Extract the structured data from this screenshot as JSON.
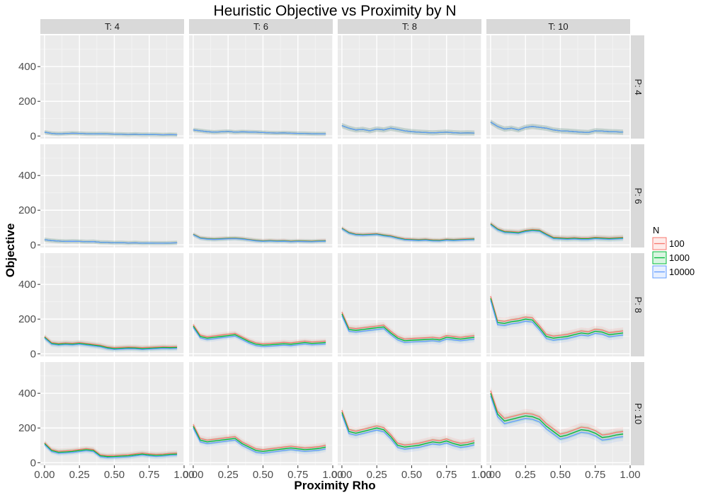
{
  "chart_data": {
    "type": "line",
    "title": "Heuristic Objective vs Proximity by N",
    "xlabel": "Proximity Rho",
    "ylabel": "Objective",
    "xlim": [
      -0.03,
      1.0
    ],
    "ylim": [
      -15,
      580
    ],
    "x_ticks": [
      0.0,
      0.25,
      0.5,
      0.75,
      1.0
    ],
    "x_tick_labels": [
      "0.00",
      "0.25",
      "0.50",
      "0.75",
      "1.00"
    ],
    "y_ticks": [
      0,
      200,
      400
    ],
    "y_tick_labels": [
      "0",
      "200",
      "400"
    ],
    "grid": true,
    "legend": {
      "title": "N",
      "position": "right",
      "entries": [
        {
          "label": "100",
          "color": "#F8766D"
        },
        {
          "label": "1000",
          "color": "#00BA38"
        },
        {
          "label": "10000",
          "color": "#619CFF"
        }
      ]
    },
    "facet_cols": [
      {
        "label": "T: 4"
      },
      {
        "label": "T: 6"
      },
      {
        "label": "T: 8"
      },
      {
        "label": "T: 10"
      }
    ],
    "facet_rows": [
      {
        "label": "P: 4"
      },
      {
        "label": "P: 6"
      },
      {
        "label": "P: 8"
      },
      {
        "label": "P: 10"
      }
    ],
    "x": [
      0.0,
      0.05,
      0.1,
      0.15,
      0.2,
      0.25,
      0.3,
      0.35,
      0.4,
      0.45,
      0.5,
      0.55,
      0.6,
      0.65,
      0.7,
      0.75,
      0.8,
      0.85,
      0.9,
      0.95
    ],
    "panels": [
      [
        {
          "values": [
            22,
            15,
            12,
            14,
            16,
            15,
            13,
            12,
            13,
            12,
            11,
            10,
            9,
            10,
            8,
            9,
            8,
            7,
            8,
            7
          ],
          "band": 12,
          "offsets": [
            0,
            0,
            0
          ]
        },
        {
          "values": [
            35,
            30,
            25,
            22,
            24,
            26,
            22,
            24,
            23,
            22,
            20,
            18,
            17,
            18,
            16,
            15,
            14,
            13,
            12,
            12
          ],
          "band": 12,
          "offsets": [
            0,
            0,
            0
          ]
        },
        {
          "values": [
            60,
            45,
            35,
            38,
            30,
            40,
            35,
            45,
            38,
            30,
            25,
            22,
            20,
            18,
            20,
            22,
            19,
            17,
            18,
            17
          ],
          "band": 15,
          "offsets": [
            0,
            0,
            0
          ]
        },
        {
          "values": [
            80,
            55,
            40,
            45,
            35,
            50,
            55,
            50,
            45,
            35,
            30,
            28,
            25,
            22,
            20,
            30,
            28,
            25,
            24,
            22
          ],
          "band": 15,
          "offsets": [
            0,
            0,
            0
          ]
        }
      ],
      [
        {
          "values": [
            30,
            25,
            22,
            20,
            21,
            20,
            18,
            19,
            15,
            14,
            12,
            13,
            11,
            12,
            10,
            11,
            10,
            10,
            11,
            12
          ],
          "band": 12,
          "offsets": [
            0,
            0,
            0
          ]
        },
        {
          "values": [
            60,
            40,
            35,
            33,
            35,
            37,
            38,
            35,
            30,
            25,
            22,
            24,
            22,
            23,
            20,
            22,
            21,
            20,
            22,
            23
          ],
          "band": 12,
          "offsets": [
            2,
            0,
            -2
          ]
        },
        {
          "values": [
            95,
            70,
            60,
            58,
            60,
            62,
            55,
            50,
            40,
            32,
            30,
            28,
            30,
            26,
            25,
            30,
            28,
            30,
            32,
            33
          ],
          "band": 12,
          "offsets": [
            3,
            0,
            -3
          ]
        },
        {
          "values": [
            120,
            90,
            75,
            73,
            70,
            80,
            85,
            82,
            60,
            40,
            38,
            36,
            38,
            35,
            35,
            40,
            38,
            36,
            38,
            40
          ],
          "band": 15,
          "offsets": [
            4,
            0,
            -4
          ]
        }
      ],
      [
        {
          "values": [
            95,
            60,
            55,
            58,
            56,
            60,
            55,
            50,
            45,
            35,
            30,
            32,
            34,
            33,
            30,
            32,
            34,
            36,
            35,
            36
          ],
          "band": 15,
          "offsets": [
            5,
            0,
            -5
          ]
        },
        {
          "values": [
            160,
            100,
            90,
            95,
            100,
            105,
            110,
            90,
            70,
            55,
            50,
            52,
            55,
            58,
            55,
            60,
            65,
            60,
            62,
            65
          ],
          "band": 15,
          "offsets": [
            8,
            0,
            -8
          ]
        },
        {
          "values": [
            230,
            140,
            135,
            140,
            145,
            150,
            155,
            120,
            90,
            75,
            78,
            80,
            82,
            85,
            80,
            95,
            90,
            85,
            90,
            95
          ],
          "band": 18,
          "offsets": [
            10,
            0,
            -10
          ]
        },
        {
          "values": [
            320,
            180,
            175,
            185,
            190,
            200,
            195,
            150,
            100,
            90,
            95,
            100,
            110,
            120,
            115,
            130,
            125,
            110,
            115,
            120
          ],
          "band": 20,
          "offsets": [
            12,
            0,
            -12
          ]
        }
      ],
      [
        {
          "values": [
            110,
            70,
            60,
            62,
            65,
            70,
            75,
            70,
            40,
            35,
            36,
            38,
            40,
            45,
            50,
            45,
            42,
            44,
            48,
            50
          ],
          "band": 15,
          "offsets": [
            6,
            0,
            -6
          ]
        },
        {
          "values": [
            210,
            130,
            120,
            125,
            130,
            135,
            140,
            110,
            90,
            70,
            65,
            70,
            75,
            80,
            85,
            80,
            75,
            78,
            82,
            90
          ],
          "band": 18,
          "offsets": [
            10,
            0,
            -10
          ]
        },
        {
          "values": [
            290,
            180,
            170,
            180,
            190,
            200,
            190,
            150,
            100,
            90,
            95,
            100,
            110,
            120,
            115,
            125,
            110,
            100,
            105,
            115
          ],
          "band": 20,
          "offsets": [
            12,
            0,
            -12
          ]
        },
        {
          "values": [
            400,
            280,
            240,
            250,
            260,
            270,
            265,
            250,
            210,
            180,
            150,
            160,
            175,
            190,
            185,
            170,
            145,
            150,
            160,
            165
          ],
          "band": 25,
          "offsets": [
            15,
            0,
            -15
          ]
        }
      ]
    ]
  }
}
